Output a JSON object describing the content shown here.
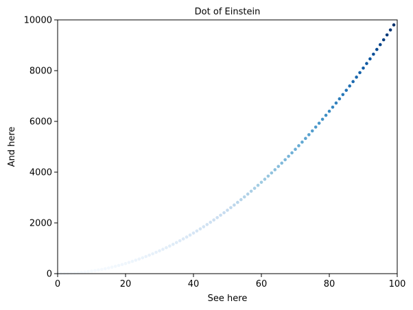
{
  "chart_data": {
    "type": "scatter",
    "title": "Dot of Einstein",
    "xlabel": "See here",
    "ylabel": "And here",
    "xlim": [
      0,
      100
    ],
    "ylim": [
      0,
      10000
    ],
    "x_ticks": [
      0,
      20,
      40,
      60,
      80,
      100
    ],
    "y_ticks": [
      0,
      2000,
      4000,
      6000,
      8000,
      10000
    ],
    "grid": false,
    "colormap": "Blues",
    "color_encodes": "y",
    "x": [
      0,
      1,
      2,
      3,
      4,
      5,
      6,
      7,
      8,
      9,
      10,
      11,
      12,
      13,
      14,
      15,
      16,
      17,
      18,
      19,
      20,
      21,
      22,
      23,
      24,
      25,
      26,
      27,
      28,
      29,
      30,
      31,
      32,
      33,
      34,
      35,
      36,
      37,
      38,
      39,
      40,
      41,
      42,
      43,
      44,
      45,
      46,
      47,
      48,
      49,
      50,
      51,
      52,
      53,
      54,
      55,
      56,
      57,
      58,
      59,
      60,
      61,
      62,
      63,
      64,
      65,
      66,
      67,
      68,
      69,
      70,
      71,
      72,
      73,
      74,
      75,
      76,
      77,
      78,
      79,
      80,
      81,
      82,
      83,
      84,
      85,
      86,
      87,
      88,
      89,
      90,
      91,
      92,
      93,
      94,
      95,
      96,
      97,
      98,
      99
    ],
    "y": [
      0,
      1,
      4,
      9,
      16,
      25,
      36,
      49,
      64,
      81,
      100,
      121,
      144,
      169,
      196,
      225,
      256,
      289,
      324,
      361,
      400,
      441,
      484,
      529,
      576,
      625,
      676,
      729,
      784,
      841,
      900,
      961,
      1024,
      1089,
      1156,
      1225,
      1296,
      1369,
      1444,
      1521,
      1600,
      1681,
      1764,
      1849,
      1936,
      2025,
      2116,
      2209,
      2304,
      2401,
      2500,
      2601,
      2704,
      2809,
      2916,
      3025,
      3136,
      3249,
      3364,
      3481,
      3600,
      3721,
      3844,
      3969,
      4096,
      4225,
      4356,
      4489,
      4624,
      4761,
      4900,
      5041,
      5184,
      5329,
      5476,
      5625,
      5776,
      5929,
      6084,
      6241,
      6400,
      6561,
      6724,
      6889,
      7056,
      7225,
      7396,
      7569,
      7744,
      7921,
      8100,
      8281,
      8464,
      8649,
      8836,
      9025,
      9216,
      9409,
      9604,
      9801
    ]
  }
}
